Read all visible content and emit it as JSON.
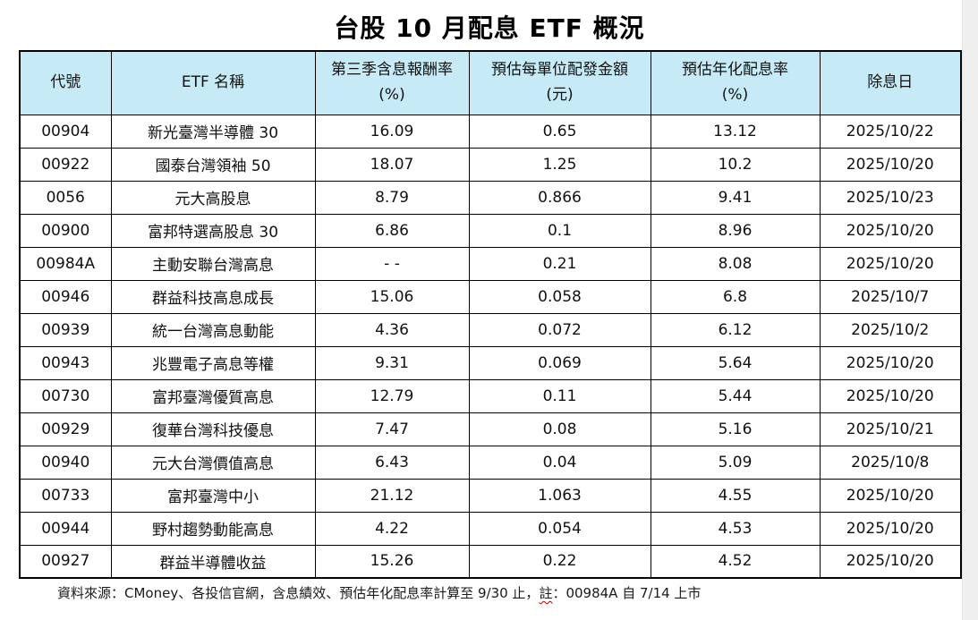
{
  "title": "台股 10 月配息 ETF 概況",
  "colors": {
    "header_bg": "#c6eaf6",
    "table_border": "#000000",
    "text": "#111111",
    "spellcheck_squiggle": "#c00000",
    "side_strip": "#efefef"
  },
  "table": {
    "columns": [
      {
        "key": "code",
        "label": "代號",
        "sub": ""
      },
      {
        "key": "name",
        "label": "ETF 名稱",
        "sub": ""
      },
      {
        "key": "q3ret",
        "label": "第三季含息報酬率",
        "sub": "(%)"
      },
      {
        "key": "payout",
        "label": "預估每單位配發金額",
        "sub": "(元)"
      },
      {
        "key": "yield",
        "label": "預估年化配息率",
        "sub": "(%)"
      },
      {
        "key": "exdate",
        "label": "除息日",
        "sub": ""
      }
    ]
  },
  "chart_data": {
    "type": "table",
    "title": "台股 10 月配息 ETF 概況",
    "columns": [
      "代號",
      "ETF 名稱",
      "第三季含息報酬率 (%)",
      "預估每單位配發金額 (元)",
      "預估年化配息率 (%)",
      "除息日"
    ],
    "rows": [
      [
        "00904",
        "新光臺灣半導體 30",
        "16.09",
        "0.65",
        "13.12",
        "2025/10/22"
      ],
      [
        "00922",
        "國泰台灣領袖 50",
        "18.07",
        "1.25",
        "10.2",
        "2025/10/20"
      ],
      [
        "0056",
        "元大高股息",
        "8.79",
        "0.866",
        "9.41",
        "2025/10/23"
      ],
      [
        "00900",
        "富邦特選高股息 30",
        "6.86",
        "0.1",
        "8.96",
        "2025/10/20"
      ],
      [
        "00984A",
        "主動安聯台灣高息",
        "- -",
        "0.21",
        "8.08",
        "2025/10/20"
      ],
      [
        "00946",
        "群益科技高息成長",
        "15.06",
        "0.058",
        "6.8",
        "2025/10/7"
      ],
      [
        "00939",
        "統一台灣高息動能",
        "4.36",
        "0.072",
        "6.12",
        "2025/10/2"
      ],
      [
        "00943",
        "兆豐電子高息等權",
        "9.31",
        "0.069",
        "5.64",
        "2025/10/20"
      ],
      [
        "00730",
        "富邦臺灣優質高息",
        "12.79",
        "0.11",
        "5.44",
        "2025/10/20"
      ],
      [
        "00929",
        "復華台灣科技優息",
        "7.47",
        "0.08",
        "5.16",
        "2025/10/21"
      ],
      [
        "00940",
        "元大台灣價值高息",
        "6.43",
        "0.04",
        "5.09",
        "2025/10/8"
      ],
      [
        "00733",
        "富邦臺灣中小",
        "21.12",
        "1.063",
        "4.55",
        "2025/10/20"
      ],
      [
        "00944",
        "野村趨勢動能高息",
        "4.22",
        "0.054",
        "4.53",
        "2025/10/20"
      ],
      [
        "00927",
        "群益半導體收益",
        "15.26",
        "0.22",
        "4.52",
        "2025/10/20"
      ]
    ]
  },
  "footnote": {
    "prefix": "資料來源：CMoney、各投信官網，含息績效、預估年化配息率計算至 9/30 止，",
    "note_word": "註",
    "suffix": "：00984A 自 7/14 上市"
  }
}
